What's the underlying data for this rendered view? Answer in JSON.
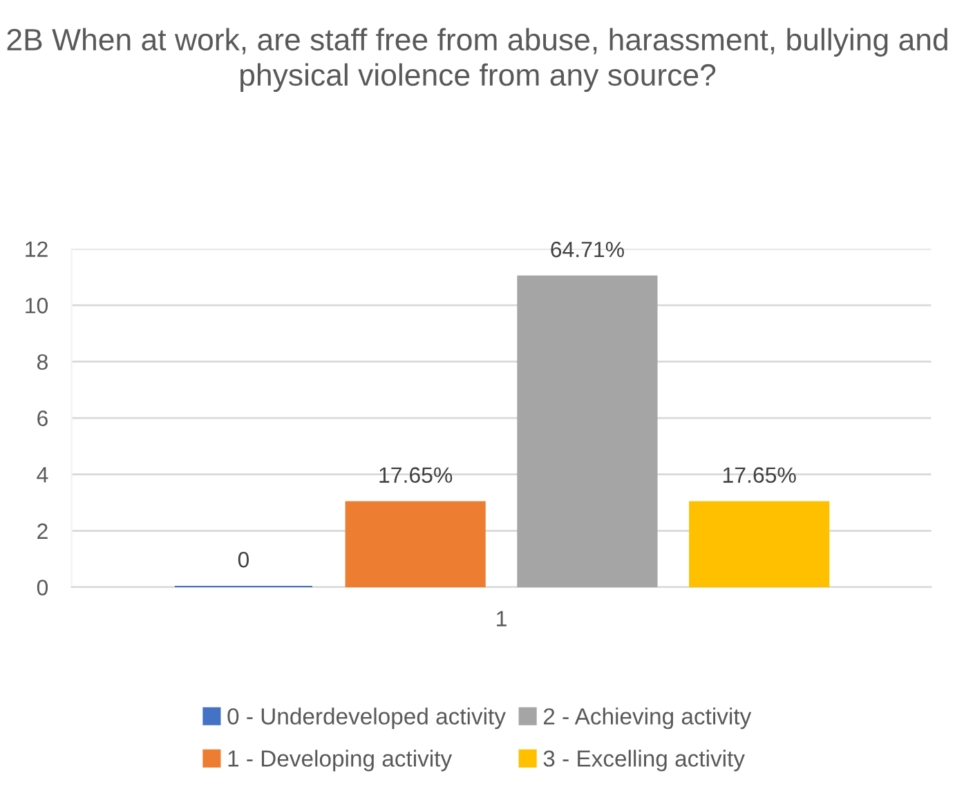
{
  "chart_data": {
    "type": "bar",
    "title": "2B When at work, are staff free from abuse, harassment, bullying and physical violence from any source?",
    "categories": [
      "1"
    ],
    "series": [
      {
        "name": "0 - Underdeveloped activity",
        "color": "#4472c4",
        "values": [
          0
        ],
        "value_labels": [
          "0"
        ]
      },
      {
        "name": "1 - Developing activity",
        "color": "#ed7d31",
        "values": [
          3
        ]
      },
      {
        "name": "2 - Achieving activity",
        "color": "#a5a5a5",
        "values": [
          11
        ]
      },
      {
        "name": "3 - Excelling activity",
        "color": "#ffc000",
        "values": [
          3
        ]
      }
    ],
    "annotations": [
      "17.65%",
      "64.71%",
      "17.65%"
    ],
    "ylim": [
      0,
      12
    ],
    "yticks": [
      0,
      2,
      4,
      6,
      8,
      10,
      12
    ],
    "grid": "y",
    "legend": "bottom"
  }
}
